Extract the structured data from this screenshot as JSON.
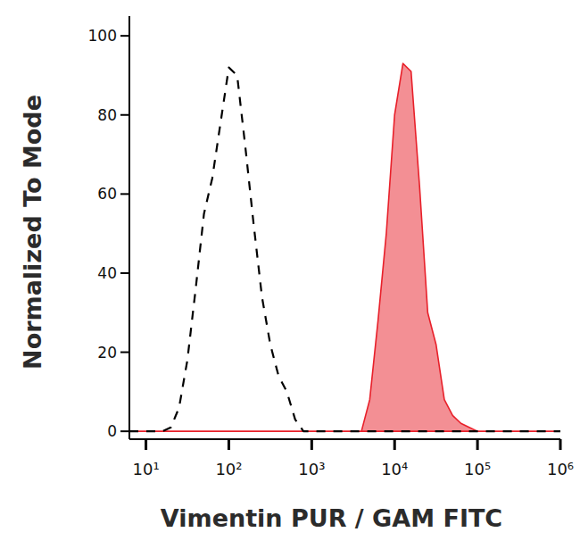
{
  "chart_data": {
    "type": "line",
    "x_label": "Vimentin PUR / GAM FITC",
    "y_label": "Normalized To Mode",
    "log": "x",
    "grid": false,
    "x": [
      6.31,
      7.94,
      10,
      12.6,
      15.8,
      20,
      25.1,
      31.6,
      39.8,
      50.1,
      63.1,
      79.4,
      100,
      126,
      158,
      200,
      251,
      316,
      398,
      501,
      631,
      794,
      1000,
      1260,
      1580,
      2000,
      2510,
      3160,
      3980,
      5010,
      6310,
      7940,
      10000,
      12600,
      15800,
      20000,
      25100,
      31600,
      39800,
      50100,
      63100,
      79400,
      100000,
      126000,
      158000,
      200000,
      251000,
      316000,
      398000,
      501000,
      631000,
      794000,
      1000000
    ],
    "xlim": [
      6.31,
      1000000
    ],
    "xticks": [
      {
        "value": 10,
        "label": "10¹"
      },
      {
        "value": 100,
        "label": "10²"
      },
      {
        "value": 1000,
        "label": "10³"
      },
      {
        "value": 10000,
        "label": "10⁴"
      },
      {
        "value": 100000,
        "label": "10⁵"
      },
      {
        "value": 1000000,
        "label": "10⁶"
      }
    ],
    "ylim": [
      -2,
      105
    ],
    "yticks": [
      0,
      20,
      40,
      60,
      80,
      100
    ],
    "series": [
      {
        "type": "line",
        "color": "#000000",
        "line_style": "dashed",
        "values": [
          0,
          0,
          0,
          0,
          0,
          1,
          6,
          18,
          36,
          55,
          64,
          78,
          92,
          90,
          72,
          52,
          34,
          22,
          14,
          10,
          3,
          0,
          0,
          0,
          0,
          0,
          0,
          0,
          0,
          0,
          0,
          0,
          0,
          0,
          0,
          0,
          0,
          0,
          0,
          0,
          0,
          0,
          0,
          0,
          0,
          0,
          0,
          0,
          0,
          0,
          0,
          0,
          0
        ]
      },
      {
        "type": "area",
        "color": "#e8202a",
        "line_style": "solid",
        "values": [
          0,
          0,
          0,
          0,
          0,
          0,
          0,
          0,
          0,
          0,
          0,
          0,
          0,
          0,
          0,
          0,
          0,
          0,
          0,
          0,
          0,
          0,
          0,
          0,
          0,
          0,
          0,
          0,
          0,
          8,
          28,
          50,
          80,
          93,
          91,
          62,
          30,
          22,
          8,
          4,
          2,
          1,
          0,
          0,
          0,
          0,
          0,
          0,
          0,
          0,
          0,
          0,
          0
        ]
      }
    ]
  }
}
